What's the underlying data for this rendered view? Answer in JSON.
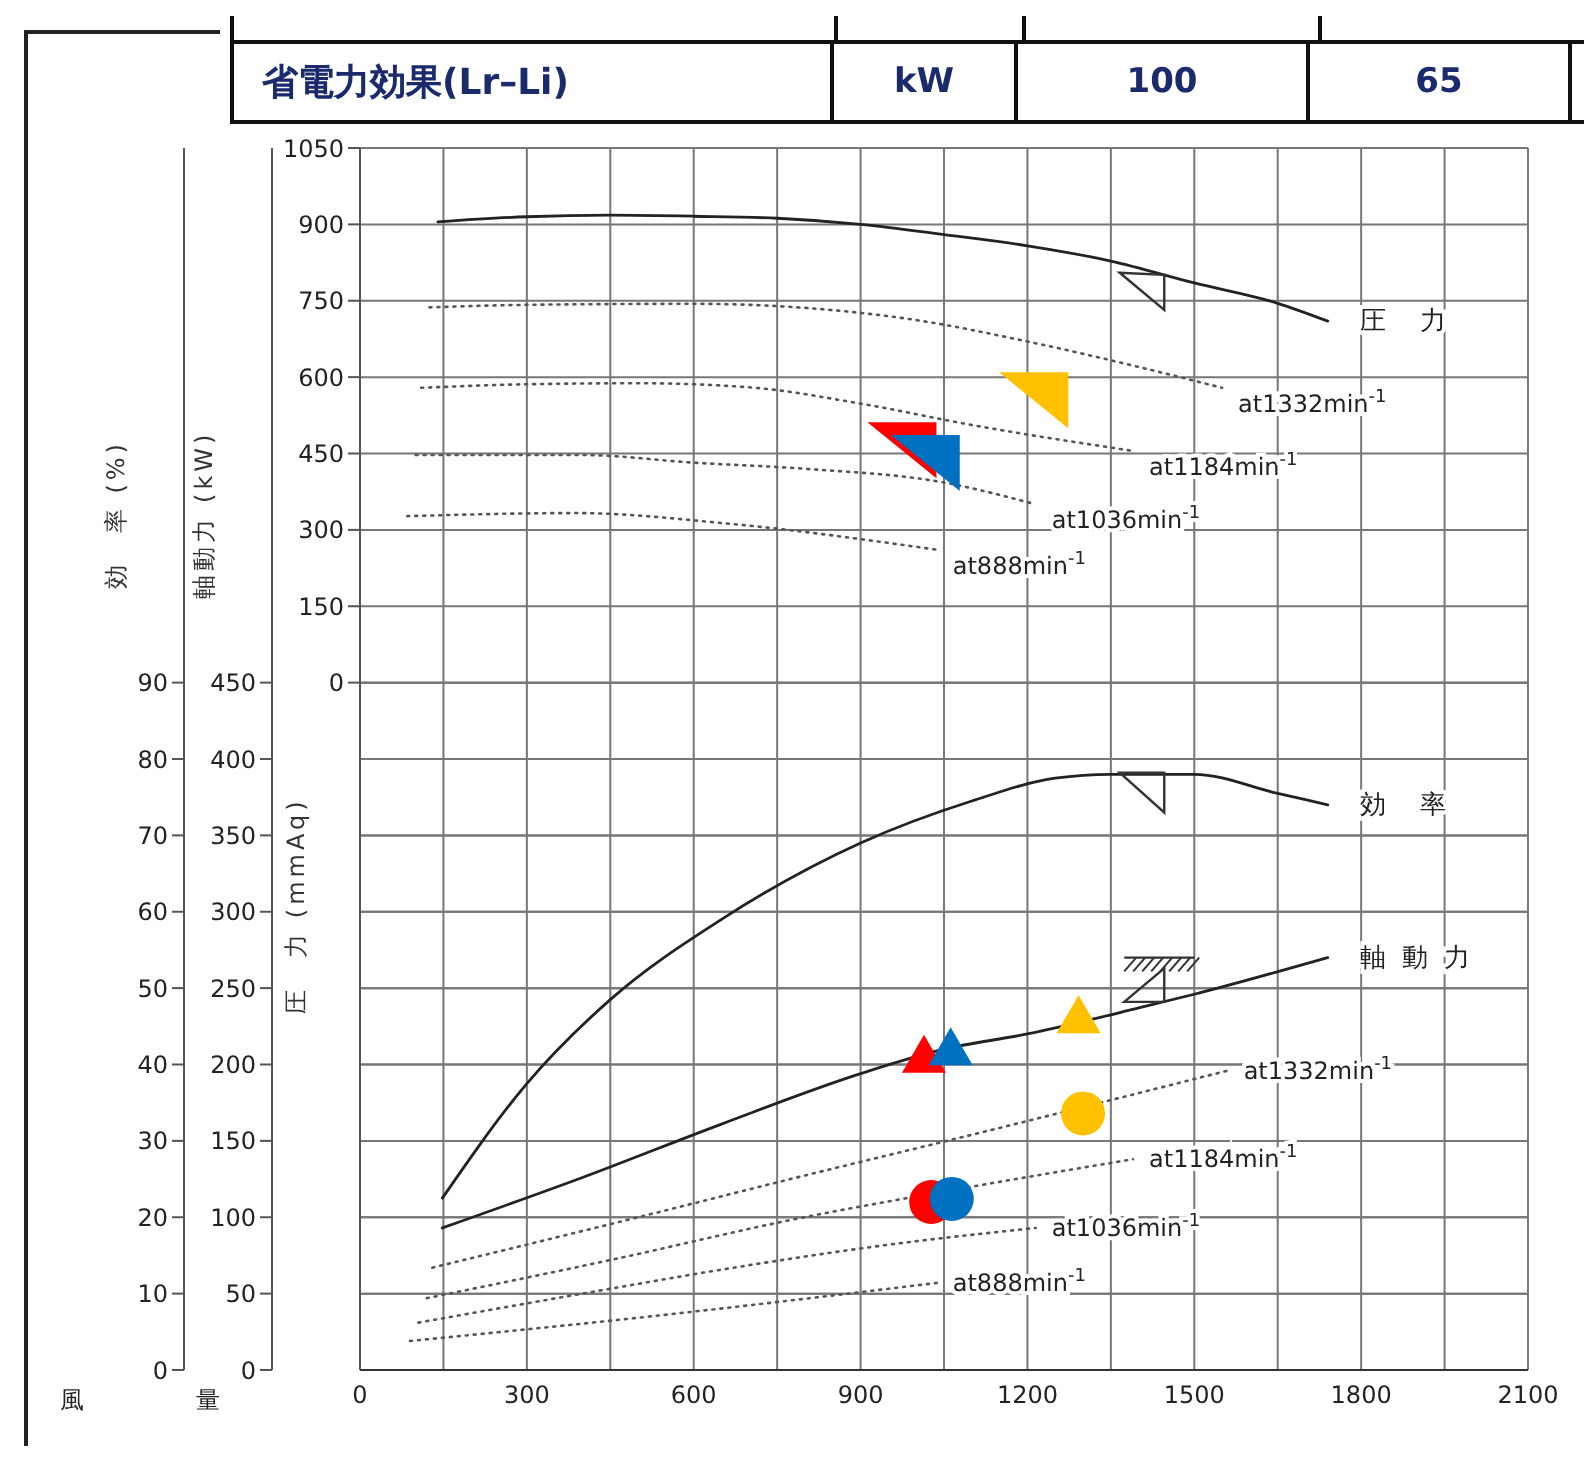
{
  "chart_data": {
    "type": "line",
    "annotations": [
      "省電力効果(Lr–Li)",
      "kW",
      "100",
      "65"
    ],
    "xlabel": "風　量",
    "ylabel": "圧　力 (mmAq)",
    "y2label": "軸動力 (kW)",
    "y3label": "効　率 (%)",
    "xlim": [
      0,
      2100
    ],
    "xticks": [
      0,
      {
        "value": 150,
        "label": null
      },
      300,
      {
        "value": 450,
        "label": null
      },
      600,
      {
        "value": 750,
        "label": null
      },
      900,
      {
        "value": 1050,
        "label": null
      },
      1200,
      {
        "value": 1350,
        "label": null
      },
      1500,
      {
        "value": 1650,
        "label": null
      },
      1800,
      {
        "value": 1950,
        "label": null
      },
      2100
    ],
    "ylim": [
      -1350,
      1050
    ],
    "yticks": [
      0,
      150,
      300,
      450,
      600,
      750,
      900,
      1050
    ],
    "y2lim": [
      0,
      800
    ],
    "y2ticks": [
      0,
      50,
      100,
      150,
      200,
      250,
      300,
      350,
      400,
      450
    ],
    "y3lim": [
      0,
      160
    ],
    "y3ticks": [
      0,
      10,
      20,
      30,
      40,
      50,
      60,
      70,
      80,
      90
    ],
    "grid": true,
    "series": [
      {
        "name": "圧　力",
        "type": "line",
        "axis": "y",
        "color": "#222222",
        "line_style": "solid",
        "x": [
          140,
          300,
          450,
          600,
          750,
          900,
          1050,
          1200,
          1350,
          1500,
          1650,
          1740
        ],
        "values": [
          905,
          915,
          918,
          916,
          912,
          900,
          880,
          858,
          828,
          785,
          745,
          710
        ]
      },
      {
        "name": "at1332min$^{-1}$",
        "type": "line",
        "axis": "y",
        "color": "#555555",
        "line_style": "dotted",
        "x": [
          125,
          300,
          600,
          800,
          1000,
          1200,
          1400,
          1550
        ],
        "values": [
          737,
          742,
          744,
          736,
          712,
          670,
          620,
          579
        ]
      },
      {
        "name": "at1184min$^{-1}$",
        "type": "line",
        "axis": "y",
        "color": "#555555",
        "line_style": "dotted",
        "x": [
          110,
          300,
          500,
          700,
          900,
          1100,
          1390
        ],
        "values": [
          579,
          586,
          588,
          580,
          548,
          506,
          455
        ]
      },
      {
        "name": "at1036min$^{-1}$",
        "type": "line",
        "axis": "y",
        "color": "#555555",
        "line_style": "dotted",
        "x": [
          100,
          400,
          600,
          800,
          1050,
          1215
        ],
        "values": [
          447,
          447,
          432,
          420,
          393,
          350
        ]
      },
      {
        "name": "at888min$^{-1}$",
        "type": "line",
        "axis": "y",
        "color": "#555555",
        "line_style": "dotted",
        "x": [
          85,
          390,
          655,
          1037
        ],
        "values": [
          327,
          333,
          313,
          261
        ]
      },
      {
        "name": "効　率",
        "type": "line",
        "axis": "y3",
        "color": "#222222",
        "line_style": "solid",
        "x": [
          148,
          300,
          450,
          650,
          900,
          1100,
          1250,
          1350,
          1500,
          1650,
          1740
        ],
        "values": [
          22.5,
          37.5,
          48.5,
          59,
          69,
          74.5,
          77.5,
          78,
          78,
          75.5,
          74
        ]
      },
      {
        "name": "軸 動 力",
        "axis": "y2",
        "color": "#222222",
        "line_style": "solid",
        "x": [
          148,
          400,
          650,
          900,
          1050,
          1200,
          1400,
          1500,
          1740
        ],
        "values": [
          93,
          126,
          161,
          194,
          210,
          220,
          237,
          246,
          270
        ]
      },
      {
        "name": "at1332min$^{-1}$",
        "type": "line",
        "axis": "y2",
        "color": "#555555",
        "line_style": "dotted",
        "x": [
          130,
          500,
          785,
          1100,
          1560
        ],
        "values": [
          67,
          100,
          126,
          154,
          196
        ]
      },
      {
        "name": "at1184min$^{-1}$",
        "type": "line",
        "axis": "y2",
        "color": "#555555",
        "line_style": "dotted",
        "x": [
          120,
          450,
          785,
          1100,
          1390
        ],
        "values": [
          47,
          72,
          99,
          120,
          138
        ]
      },
      {
        "name": "at1036min$^{-1}$",
        "type": "line",
        "axis": "y2",
        "color": "#555555",
        "line_style": "dotted",
        "x": [
          105,
          400,
          655,
          950,
          1215
        ],
        "values": [
          31,
          50,
          66,
          82,
          93
        ]
      },
      {
        "name": "at888min$^{-1}$",
        "type": "line",
        "axis": "y2",
        "color": "#555555",
        "line_style": "dotted",
        "x": [
          90,
          520,
          1037
        ],
        "values": [
          19,
          35,
          57
        ]
      },
      {
        "type": "scatter",
        "axis": "y",
        "marker": "triangle",
        "x": [
          995,
          1037,
          1232
        ],
        "values": [
          475,
          450,
          573
        ],
        "colors": [
          "#ff0000",
          "#0070c0",
          "#ffc000"
        ]
      },
      {
        "type": "scatter",
        "axis": "y2",
        "marker": "triangle",
        "x": [
          1014,
          1062,
          1292
        ],
        "values": [
          205,
          210,
          231
        ],
        "colors": [
          "#ff0000",
          "#0070c0",
          "#ffc000"
        ]
      },
      {
        "type": "scatter",
        "axis": "y2",
        "marker": "circle",
        "x": [
          1027,
          1064,
          1300
        ],
        "values": [
          110,
          112,
          168
        ],
        "colors": [
          "#ff0000",
          "#0070c0",
          "#ffc000"
        ]
      }
    ]
  }
}
